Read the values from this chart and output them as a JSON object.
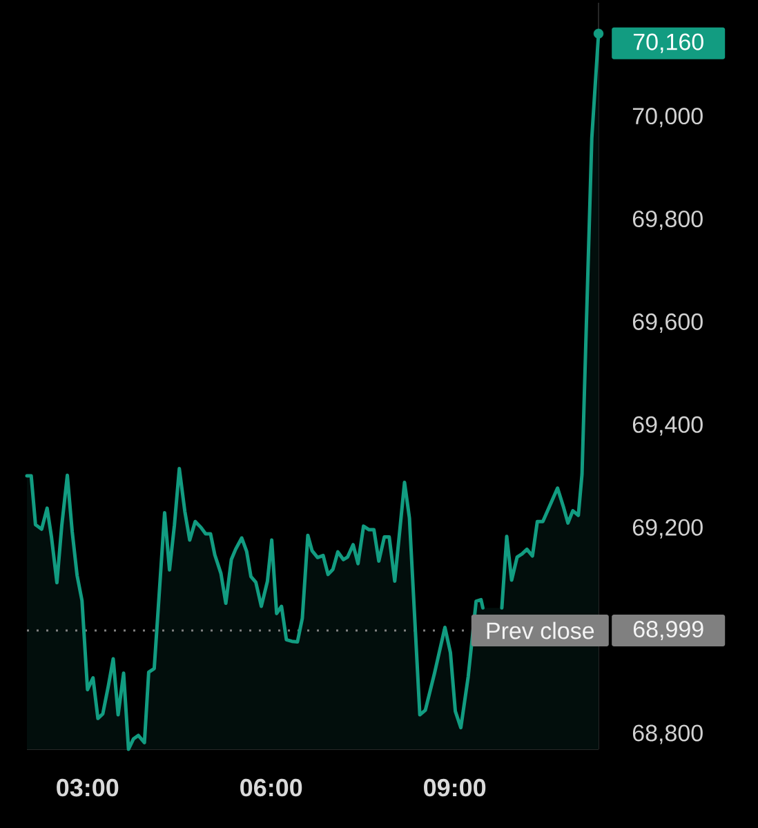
{
  "chart_data": {
    "type": "area",
    "color": "#129c81",
    "x": [
      2.01,
      2.08,
      2.15,
      2.25,
      2.34,
      2.41,
      2.5,
      2.58,
      2.67,
      2.75,
      2.83,
      2.91,
      3.0,
      3.09,
      3.17,
      3.25,
      3.34,
      3.42,
      3.5,
      3.59,
      3.67,
      3.75,
      3.83,
      3.93,
      4.0,
      4.09,
      4.26,
      4.34,
      4.42,
      4.5,
      4.59,
      4.67,
      4.76,
      4.85,
      4.93,
      5.01,
      5.08,
      5.18,
      5.26,
      5.35,
      5.42,
      5.52,
      5.6,
      5.67,
      5.75,
      5.84,
      5.94,
      6.01,
      6.09,
      6.17,
      6.25,
      6.34,
      6.43,
      6.51,
      6.6,
      6.67,
      6.76,
      6.85,
      6.93,
      7.01,
      7.09,
      7.18,
      7.25,
      7.34,
      7.42,
      7.51,
      7.6,
      7.68,
      7.76,
      7.85,
      7.93,
      8.02,
      8.18,
      8.26,
      8.43,
      8.52,
      8.67,
      8.84,
      8.93,
      9.01,
      9.1,
      9.22,
      9.35,
      9.43,
      9.46,
      9.62,
      9.77,
      9.85,
      9.93,
      10.02,
      10.1,
      10.18,
      10.27,
      10.35,
      10.44,
      10.68,
      10.78,
      10.85,
      10.93,
      11.02,
      11.08,
      11.24,
      11.35
    ],
    "values": [
      69300,
      69300,
      69205,
      69196,
      69237,
      69182,
      69092,
      69204,
      69301,
      69191,
      69106,
      69057,
      68884,
      68907,
      68828,
      68837,
      68891,
      68944,
      68835,
      68916,
      68768,
      68788,
      68795,
      68781,
      68918,
      68925,
      69228,
      69117,
      69204,
      69314,
      69231,
      69175,
      69211,
      69200,
      69187,
      69187,
      69146,
      69110,
      69052,
      69137,
      69157,
      69179,
      69153,
      69104,
      69093,
      69046,
      69095,
      69175,
      69032,
      69046,
      68981,
      68978,
      68977,
      69023,
      69184,
      69154,
      69141,
      69145,
      69108,
      69118,
      69152,
      69137,
      69142,
      69166,
      69129,
      69202,
      69195,
      69195,
      69134,
      69181,
      69181,
      69095,
      69287,
      69218,
      68835,
      68844,
      68916,
      69005,
      68956,
      68842,
      68810,
      68909,
      69056,
      69059,
      69043,
      null,
      69043,
      69182,
      69097,
      69142,
      69148,
      69157,
      69144,
      69211,
      69211,
      69276,
      69238,
      69208,
      69232,
      69223,
      69303,
      69957,
      70160
    ],
    "value_labels": [
      null,
      null,
      null,
      null,
      null,
      null,
      null,
      null,
      null,
      null,
      null,
      null,
      null,
      null,
      null,
      null,
      null,
      null,
      null,
      null,
      null,
      null,
      null,
      null,
      null,
      null,
      null,
      null,
      null,
      null,
      null,
      null,
      null,
      null,
      null,
      null,
      null,
      null,
      null,
      null,
      null,
      null,
      null,
      null,
      null,
      null,
      null,
      null,
      null,
      null,
      null,
      null,
      null,
      null,
      null,
      null,
      null,
      null,
      null,
      null,
      null,
      null,
      null,
      null,
      null,
      null,
      null,
      null,
      null,
      null,
      null,
      null,
      null,
      null,
      null,
      null,
      null,
      null,
      null,
      null,
      null,
      null,
      null,
      null,
      null,
      null,
      null,
      null,
      null,
      null,
      null,
      null,
      null,
      null,
      null,
      null,
      null,
      null,
      null,
      null,
      null,
      null,
      "70,160"
    ],
    "xlim": [
      2.01,
      11.35
    ],
    "ylim": [
      68768,
      70220
    ],
    "xticks": [
      {
        "value": 3,
        "label": "03:00"
      },
      {
        "value": 6,
        "label": "06:00"
      },
      {
        "value": 9,
        "label": "09:00"
      }
    ],
    "yticks": [
      {
        "value": 68800,
        "label": "68,800"
      },
      {
        "value": 69200,
        "label": "69,200"
      },
      {
        "value": 69400,
        "label": "69,400"
      },
      {
        "value": 69600,
        "label": "69,600"
      },
      {
        "value": 69800,
        "label": "69,800"
      },
      {
        "value": 70000,
        "label": "70,000"
      }
    ],
    "ref_lines": [
      {
        "axis": "y",
        "value": 68999,
        "label": "Prev close",
        "color": "#808080",
        "line_style": "dotted"
      }
    ],
    "annotations": [
      "68,999"
    ]
  }
}
